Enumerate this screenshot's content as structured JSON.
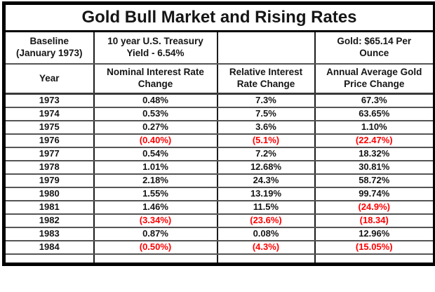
{
  "title": "Gold Bull Market and Rising Rates",
  "colors": {
    "negative_value_text": "#ff0000",
    "normal_text": "#151515",
    "border": "#000000",
    "background": "#ffffff"
  },
  "chart_data": {
    "type": "table",
    "title": "Gold Bull Market and Rising Rates",
    "baseline_header": {
      "baseline": "Baseline\n(January 1973)",
      "treasury": "10 year U.S. Treasury\nYield - 6.54%",
      "spacer": "",
      "gold": "Gold: $65.14 Per\nOunce"
    },
    "column_headers": {
      "year": "Year",
      "nominal": "Nominal Interest Rate\nChange",
      "relative": "Relative Interest\nRate Change",
      "gold": "Annual Average Gold\nPrice Change"
    },
    "negative_format_note": "values in parentheses are negative and rendered in red",
    "rows": [
      {
        "year": "1973",
        "nominal": "0.48%",
        "relative": "7.3%",
        "gold": "67.3%"
      },
      {
        "year": "1974",
        "nominal": "0.53%",
        "relative": "7.5%",
        "gold": "63.65%"
      },
      {
        "year": "1975",
        "nominal": "0.27%",
        "relative": "3.6%",
        "gold": "1.10%"
      },
      {
        "year": "1976",
        "nominal": "(0.40%)",
        "relative": "(5.1%)",
        "gold": "(22.47%)"
      },
      {
        "year": "1977",
        "nominal": "0.54%",
        "relative": "7.2%",
        "gold": "18.32%"
      },
      {
        "year": "1978",
        "nominal": "1.01%",
        "relative": "12.68%",
        "gold": "30.81%"
      },
      {
        "year": "1979",
        "nominal": "2.18%",
        "relative": "24.3%",
        "gold": "58.72%"
      },
      {
        "year": "1980",
        "nominal": "1.55%",
        "relative": "13.19%",
        "gold": "99.74%"
      },
      {
        "year": "1981",
        "nominal": "1.46%",
        "relative": "11.5%",
        "gold": "(24.9%)"
      },
      {
        "year": "1982",
        "nominal": "(3.34%)",
        "relative": "(23.6%)",
        "gold": "(18.34)"
      },
      {
        "year": "1983",
        "nominal": "0.87%",
        "relative": "0.08%",
        "gold": "12.96%"
      },
      {
        "year": "1984",
        "nominal": "(0.50%)",
        "relative": "(4.3%)",
        "gold": "(15.05%)"
      },
      {
        "year": "",
        "nominal": "",
        "relative": "",
        "gold": ""
      }
    ]
  }
}
